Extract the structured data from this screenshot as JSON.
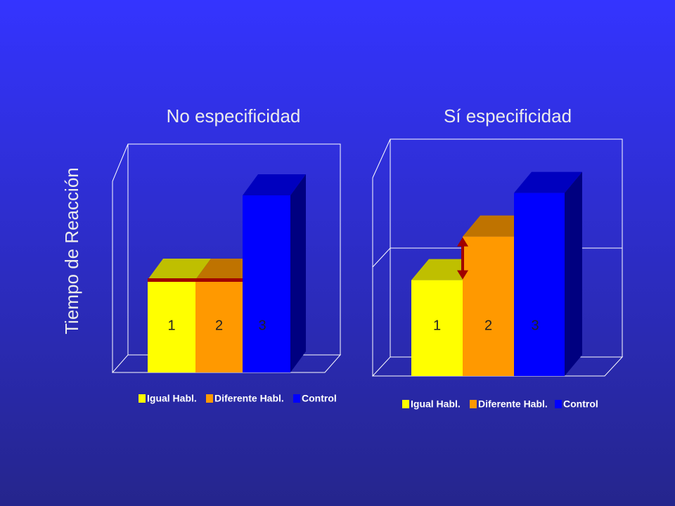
{
  "ylabel": "Tiempo de Reacción",
  "chart_data": [
    {
      "type": "bar3d",
      "title": "No especificidad",
      "categories": [
        "1",
        "2",
        "3"
      ],
      "series": [
        {
          "name": "Igual Habl.",
          "color": "#ffff00"
        },
        {
          "name": "Diferente Habl.",
          "color": "#ff9900"
        },
        {
          "name": "Control",
          "color": "#0000ff"
        }
      ],
      "values": [
        44,
        44,
        84
      ],
      "ylim": [
        0,
        100
      ],
      "grid": false,
      "marker": "line"
    },
    {
      "type": "bar3d",
      "title": "Sí especificidad",
      "categories": [
        "1",
        "2",
        "3"
      ],
      "series": [
        {
          "name": "Igual Habl.",
          "color": "#ffff00"
        },
        {
          "name": "Diferente Habl.",
          "color": "#ff9900"
        },
        {
          "name": "Control",
          "color": "#0000ff"
        }
      ],
      "values": [
        44,
        64,
        84
      ],
      "ylim": [
        0,
        100
      ],
      "grid": true,
      "marker": "arrow"
    }
  ]
}
